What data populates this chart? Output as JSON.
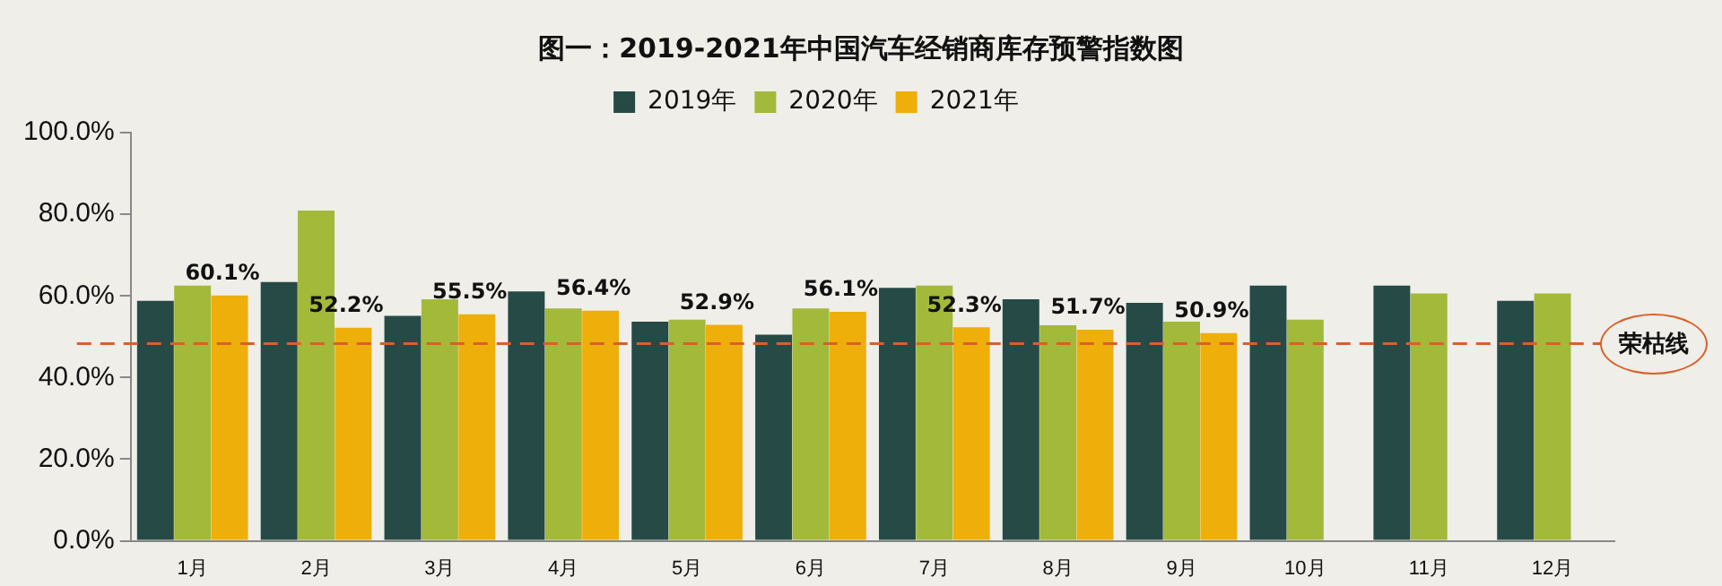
{
  "chart_data": {
    "type": "bar",
    "title": "图一：2019-2021年中国汽车经销商库存预警指数图",
    "categories": [
      "1月",
      "2月",
      "3月",
      "4月",
      "5月",
      "6月",
      "7月",
      "8月",
      "9月",
      "10月",
      "11月",
      "12月"
    ],
    "series": [
      {
        "name": "2019年",
        "color": "#264a46",
        "values": [
          58.8,
          63.4,
          55.1,
          61.1,
          53.7,
          50.5,
          62.0,
          59.2,
          58.3,
          62.5,
          62.5,
          58.8
        ]
      },
      {
        "name": "2020年",
        "color": "#a2b93a",
        "values": [
          62.5,
          80.9,
          59.2,
          56.9,
          54.2,
          56.9,
          62.5,
          52.8,
          53.7,
          54.2,
          60.6,
          60.6
        ]
      },
      {
        "name": "2021年",
        "color": "#eeaf0a",
        "values": [
          60.1,
          52.2,
          55.5,
          56.4,
          52.9,
          56.1,
          52.3,
          51.7,
          50.9,
          null,
          null,
          null
        ],
        "value_labels": [
          "60.1%",
          "52.2%",
          "55.5%",
          "56.4%",
          "52.9%",
          "56.1%",
          "52.3%",
          "51.7%",
          "50.9%",
          null,
          null,
          null
        ]
      }
    ],
    "ylim": [
      0,
      100
    ],
    "yticks": [
      {
        "value": 0,
        "label": "0.0%"
      },
      {
        "value": 20,
        "label": "20.0%"
      },
      {
        "value": 40,
        "label": "40.0%"
      },
      {
        "value": 60,
        "label": "60.0%"
      },
      {
        "value": 80,
        "label": "80.0%"
      },
      {
        "value": 100,
        "label": "100.0%"
      }
    ],
    "ref_lines": [
      {
        "axis": "y",
        "value": 48.3,
        "label": "荣枯线",
        "color": "#d9602a",
        "line_style": "dashed"
      }
    ],
    "grid": false,
    "legend": "top"
  }
}
